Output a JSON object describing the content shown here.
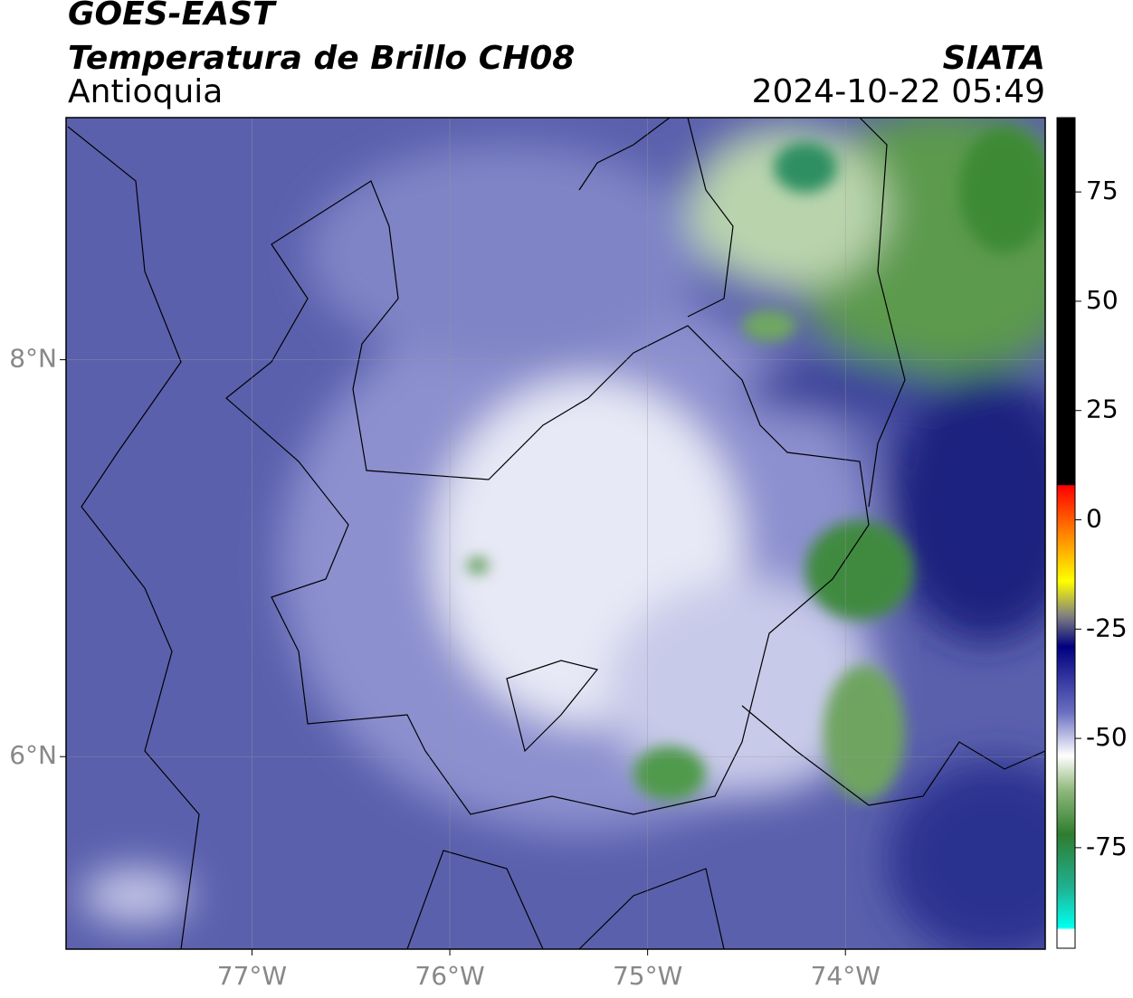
{
  "map": {
    "type": "contour",
    "title": "GOES-EAST",
    "subtitle": "Temperatura de Brillo CH08",
    "region": "Antioquia",
    "source": "SIATA",
    "datetime": "2024-10-22 05:49",
    "xlim": [
      -77.94,
      -72.99
    ],
    "ylim": [
      5.03,
      9.22
    ],
    "xticks": [
      {
        "value": -77,
        "label": "77°W"
      },
      {
        "value": -76,
        "label": "76°W"
      },
      {
        "value": -75,
        "label": "75°W"
      },
      {
        "value": -74,
        "label": "74°W"
      }
    ],
    "yticks": [
      {
        "value": 6,
        "label": "6°N"
      },
      {
        "value": 8,
        "label": "8°N"
      }
    ],
    "grid": true
  },
  "colorbar": {
    "lim": [
      -98,
      92
    ],
    "ticks": [
      75,
      50,
      25,
      0,
      -25,
      -50,
      -75
    ]
  }
}
